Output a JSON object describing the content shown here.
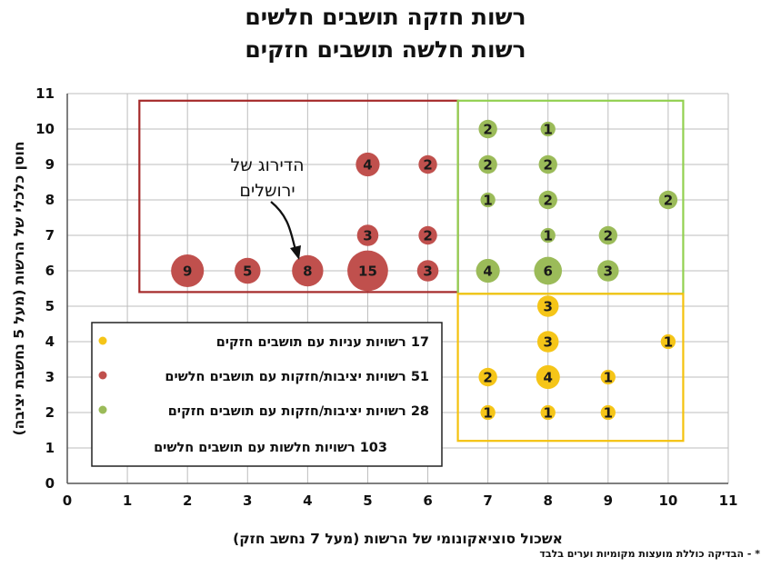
{
  "chart_data": {
    "type": "scatter",
    "title_line1": "רשות חזקה תושבים חלשים",
    "title_line2": "רשות חלשה תושבים חזקים",
    "xlabel": "אשכול סוציאקונומי של הרשות (מעל 7 נחשב חזק)",
    "ylabel": "חוסן כלכלי של הרשות (מעל 5 נחשבת יציבה)",
    "xlim": [
      0,
      11
    ],
    "ylim": [
      0,
      11
    ],
    "x_ticks": [
      "0",
      "1",
      "2",
      "3",
      "4",
      "5",
      "6",
      "7",
      "8",
      "9",
      "10",
      "11"
    ],
    "y_ticks": [
      "0",
      "1",
      "2",
      "3",
      "4",
      "5",
      "6",
      "7",
      "8",
      "9",
      "10",
      "11"
    ],
    "grid": true,
    "colors": {
      "red": "#c0504d",
      "green": "#9bbb59",
      "yellow": "#f5c518"
    },
    "series": [
      {
        "name": "17 רשויות עניות עם תושבים חזקים",
        "color": "#f5c518",
        "points": [
          {
            "x": 8,
            "y": 5,
            "label": "3"
          },
          {
            "x": 8,
            "y": 4,
            "label": "3"
          },
          {
            "x": 10,
            "y": 4,
            "label": "1"
          },
          {
            "x": 7,
            "y": 3,
            "label": "2"
          },
          {
            "x": 8,
            "y": 3,
            "label": "4"
          },
          {
            "x": 9,
            "y": 3,
            "label": "1"
          },
          {
            "x": 7,
            "y": 2,
            "label": "1"
          },
          {
            "x": 8,
            "y": 2,
            "label": "1"
          },
          {
            "x": 9,
            "y": 2,
            "label": "1"
          }
        ]
      },
      {
        "name": "51 רשויות יציבות/חזקות עם תושבים חלשים",
        "color": "#c0504d",
        "points": [
          {
            "x": 2,
            "y": 6,
            "label": "9"
          },
          {
            "x": 3,
            "y": 6,
            "label": "5"
          },
          {
            "x": 4,
            "y": 6,
            "label": "8"
          },
          {
            "x": 5,
            "y": 6,
            "label": "15"
          },
          {
            "x": 6,
            "y": 6,
            "label": "3"
          },
          {
            "x": 5,
            "y": 7,
            "label": "3"
          },
          {
            "x": 6,
            "y": 7,
            "label": "2"
          },
          {
            "x": 5,
            "y": 9,
            "label": "4"
          },
          {
            "x": 6,
            "y": 9,
            "label": "2"
          }
        ]
      },
      {
        "name": "28 רשויות יציבות/חזקות עם תושבים חזקים",
        "color": "#9bbb59",
        "points": [
          {
            "x": 7,
            "y": 10,
            "label": "2"
          },
          {
            "x": 8,
            "y": 10,
            "label": "1"
          },
          {
            "x": 7,
            "y": 9,
            "label": "2"
          },
          {
            "x": 8,
            "y": 9,
            "label": "2"
          },
          {
            "x": 7,
            "y": 8,
            "label": "1"
          },
          {
            "x": 8,
            "y": 8,
            "label": "2"
          },
          {
            "x": 10,
            "y": 8,
            "label": "2"
          },
          {
            "x": 8,
            "y": 7,
            "label": "1"
          },
          {
            "x": 9,
            "y": 7,
            "label": "2"
          },
          {
            "x": 7,
            "y": 6,
            "label": "4"
          },
          {
            "x": 8,
            "y": 6,
            "label": "6"
          },
          {
            "x": 9,
            "y": 6,
            "label": "3"
          }
        ]
      }
    ],
    "legend_extra": "103 רשויות חלשות עם תושבים חלשים",
    "annotation": {
      "line1": "הדירוג של",
      "line2": "ירושלים",
      "points_to": {
        "x": 4,
        "y": 6
      }
    },
    "footnote": "* - הבדיקה כוללת מועצות מקומיות וערים בלבד"
  }
}
